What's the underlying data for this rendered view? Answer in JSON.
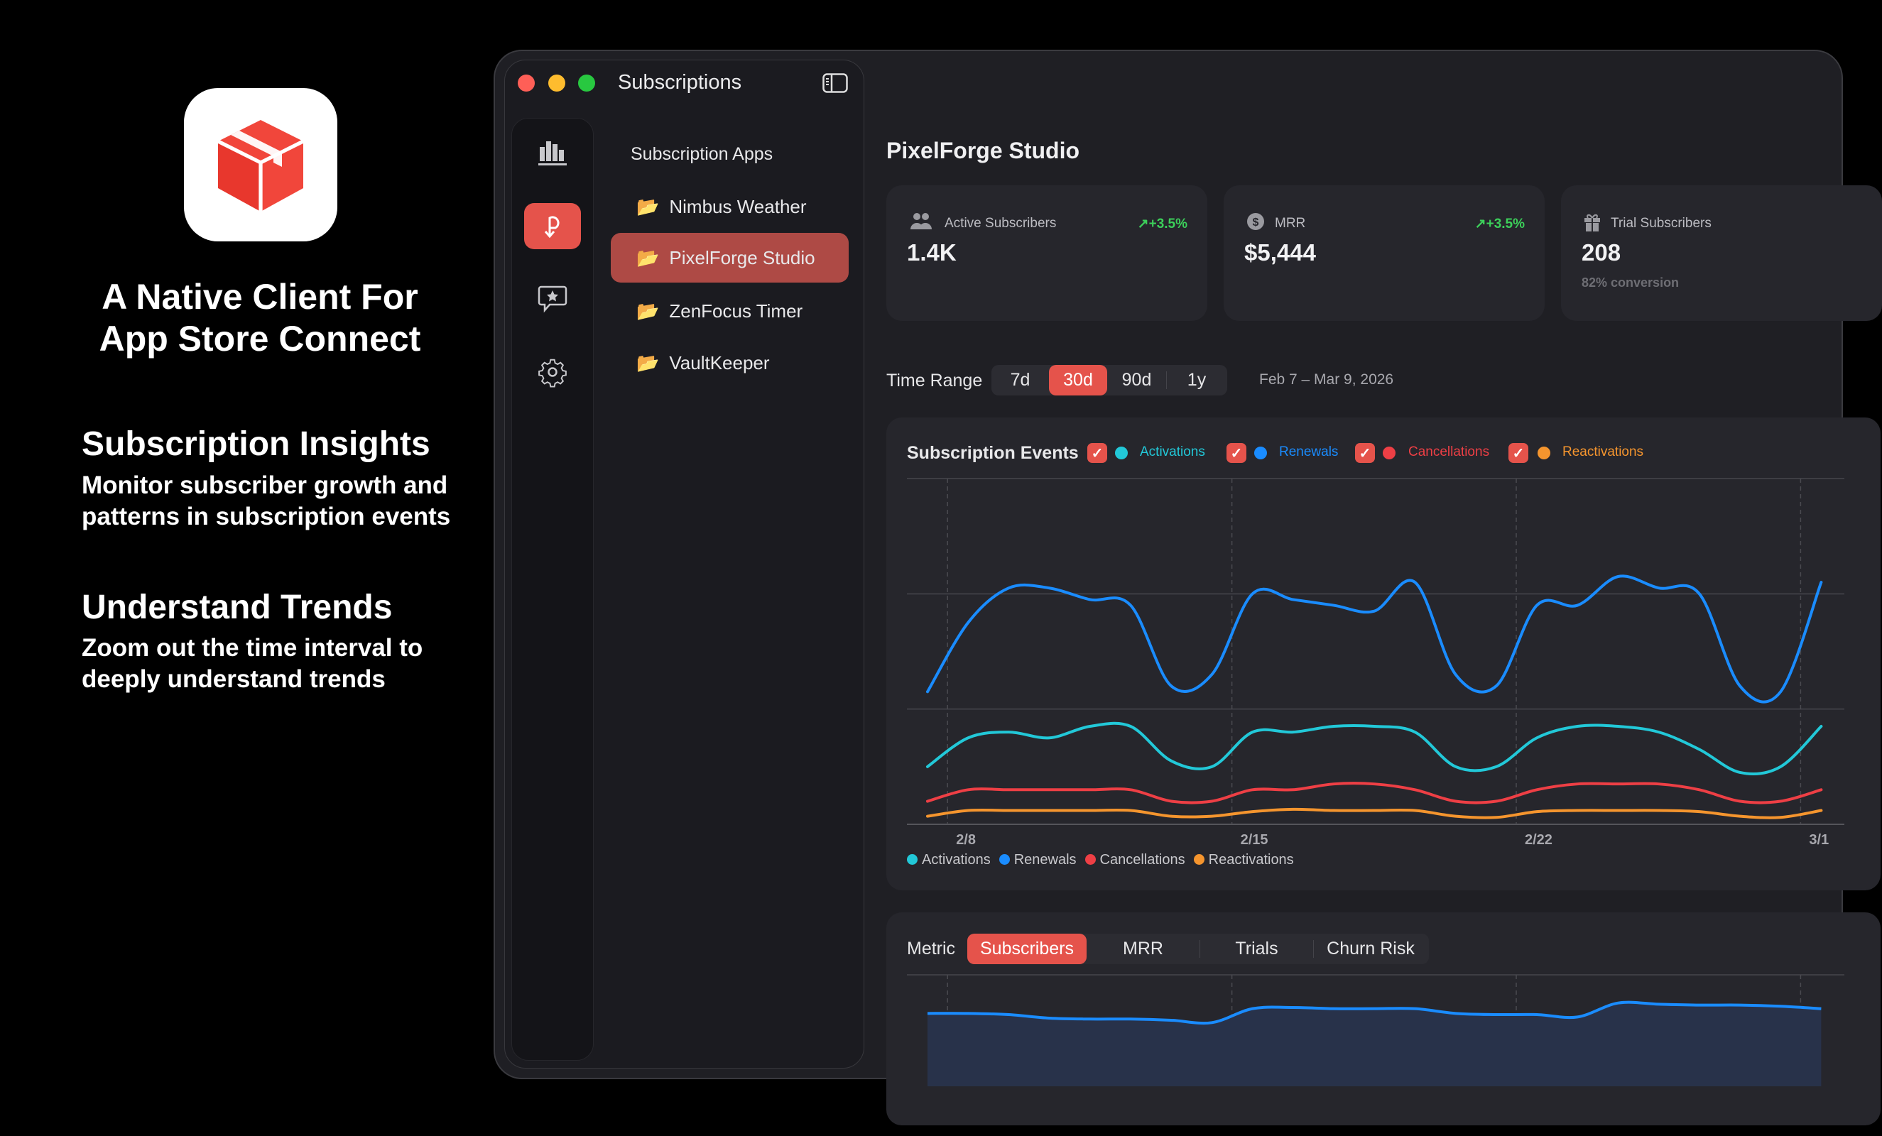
{
  "promo": {
    "headline_line1": "A Native Client For",
    "headline_line2": "App Store Connect",
    "features": [
      {
        "title": "Subscription Insights",
        "line1": "Monitor subscriber growth and",
        "line2": "patterns in subscription events"
      },
      {
        "title": "Understand Trends",
        "line1": "Zoom out the time interval to",
        "line2": "deeply understand trends"
      }
    ]
  },
  "window": {
    "title": "Subscriptions",
    "rail_icons": [
      "chart-bar-icon",
      "subscription-icon",
      "review-star-icon",
      "gear-icon"
    ],
    "list_header": "Subscription Apps",
    "apps": [
      {
        "name": "Nimbus Weather",
        "selected": false
      },
      {
        "name": "PixelForge Studio",
        "selected": true
      },
      {
        "name": "ZenFocus Timer",
        "selected": false
      },
      {
        "name": "VaultKeeper",
        "selected": false
      }
    ]
  },
  "main": {
    "title": "PixelForge Studio",
    "cards": [
      {
        "label": "Active Subscribers",
        "value": "1.4K",
        "trend": "+3.5%",
        "icon": "people-icon"
      },
      {
        "label": "MRR",
        "value": "$5,444",
        "trend": "+3.5%",
        "icon": "dollar-icon"
      },
      {
        "label": "Trial Subscribers",
        "value": "208",
        "sub": "82% conversion",
        "icon": "gift-icon"
      }
    ],
    "time_range": {
      "label": "Time Range",
      "options": [
        "7d",
        "30d",
        "90d",
        "1y"
      ],
      "selected": "30d",
      "date_range": "Feb 7 – Mar 9, 2026"
    },
    "metric": {
      "label": "Metric",
      "options": [
        "Subscribers",
        "MRR",
        "Trials",
        "Churn Risk"
      ],
      "selected": "Subscribers"
    }
  },
  "colors": {
    "accent": "#e5534b",
    "activations": "#22c8d8",
    "renewals": "#1a8cff",
    "cancellations": "#ee3f45",
    "reactivations": "#f5952e",
    "positive": "#3ccf5a"
  },
  "chart_data": [
    {
      "type": "line",
      "title": "Subscription Events",
      "x": [
        "2/7",
        "2/8",
        "2/9",
        "2/10",
        "2/11",
        "2/12",
        "2/13",
        "2/14",
        "2/15",
        "2/16",
        "2/17",
        "2/18",
        "2/19",
        "2/20",
        "2/21",
        "2/22",
        "2/23",
        "2/24",
        "2/25",
        "2/26",
        "2/27",
        "2/28",
        "3/1"
      ],
      "x_ticks": [
        "2/8",
        "2/15",
        "2/22",
        "3/1"
      ],
      "ylim": [
        0,
        60
      ],
      "grid": true,
      "legend_placement": "top-left and bottom-left",
      "series": [
        {
          "name": "Activations",
          "color": "#22c8d8",
          "values": [
            10,
            15,
            16,
            15,
            17,
            17,
            11,
            10,
            16,
            16,
            17,
            17,
            16,
            10,
            10,
            15,
            17,
            17,
            16,
            13,
            9,
            10,
            17
          ]
        },
        {
          "name": "Renewals",
          "color": "#1a8cff",
          "values": [
            23,
            35,
            41,
            41,
            39,
            38,
            24,
            26,
            40,
            39,
            38,
            37,
            42,
            26,
            24,
            38,
            38,
            43,
            41,
            40,
            24,
            23,
            42
          ]
        },
        {
          "name": "Cancellations",
          "color": "#ee3f45",
          "values": [
            4,
            6,
            6,
            6,
            6,
            6,
            4,
            4,
            6,
            6,
            7,
            7,
            6,
            4,
            4,
            6,
            7,
            7,
            7,
            6,
            4,
            4,
            6
          ]
        },
        {
          "name": "Reactivations",
          "color": "#f5952e",
          "values": [
            1.4,
            2.4,
            2.4,
            2.4,
            2.4,
            2.4,
            1.4,
            1.4,
            2.2,
            2.6,
            2.4,
            2.4,
            2.4,
            1.4,
            1.2,
            2.2,
            2.4,
            2.4,
            2.4,
            2.2,
            1.4,
            1.2,
            2.4
          ]
        }
      ]
    },
    {
      "type": "area",
      "title": "Subscribers",
      "x": [
        "2/7",
        "2/8",
        "2/9",
        "2/10",
        "2/11",
        "2/12",
        "2/13",
        "2/14",
        "2/15",
        "2/16",
        "2/17",
        "2/18",
        "2/19",
        "2/20",
        "2/21",
        "2/22",
        "2/23",
        "2/24",
        "2/25",
        "2/26",
        "2/27",
        "2/28",
        "3/1"
      ],
      "ylim": [
        0,
        1500
      ],
      "series": [
        {
          "name": "Subscribers",
          "color": "#1a8cff",
          "values": [
            1370,
            1370,
            1366,
            1354,
            1351,
            1351,
            1347,
            1339,
            1386,
            1390,
            1386,
            1386,
            1386,
            1370,
            1366,
            1366,
            1358,
            1405,
            1401,
            1398,
            1398,
            1394,
            1386
          ]
        }
      ]
    }
  ]
}
